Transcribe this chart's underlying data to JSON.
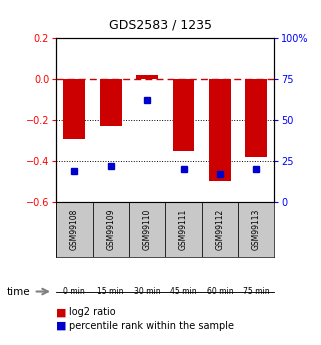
{
  "title": "GDS2583 / 1235",
  "samples": [
    "GSM99108",
    "GSM99109",
    "GSM99110",
    "GSM99111",
    "GSM99112",
    "GSM99113"
  ],
  "time_labels": [
    "0 min",
    "15 min",
    "30 min",
    "45 min",
    "60 min",
    "75 min"
  ],
  "time_colors": [
    "#e0f5d0",
    "#cceebb",
    "#b8e8a0",
    "#9edc84",
    "#80cc60",
    "#5cba3c"
  ],
  "log2_ratio": [
    -0.295,
    -0.23,
    0.02,
    -0.35,
    -0.5,
    -0.38
  ],
  "percentile_rank": [
    19,
    22,
    62,
    20,
    17,
    20
  ],
  "ylim_left": [
    -0.6,
    0.2
  ],
  "ylim_right": [
    0,
    100
  ],
  "bar_color": "#cc0000",
  "dot_color": "#0000cc",
  "ref_line_color": "#cc0000",
  "grid_color": "#000000",
  "left_ticks": [
    0.2,
    0.0,
    -0.2,
    -0.4,
    -0.6
  ],
  "right_ticks": [
    100,
    75,
    50,
    25,
    0
  ],
  "sample_box_color": "#c8c8c8",
  "legend_red_label": "log2 ratio",
  "legend_blue_label": "percentile rank within the sample"
}
